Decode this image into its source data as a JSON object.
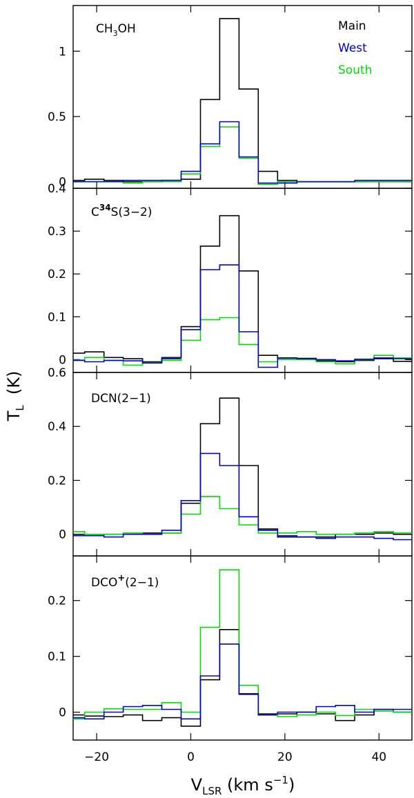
{
  "chart_data": {
    "type": "step-line",
    "title": "",
    "xlabel": {
      "main": "V",
      "sub": "LSR",
      "unit_pre": "(km  s",
      "unit_sup": "−1",
      "unit_post": ")"
    },
    "ylabel": {
      "main": "T",
      "sub": "L",
      "unit": "(K)"
    },
    "xlim": [
      -25,
      47
    ],
    "x_ticks": [
      -20,
      0,
      20,
      40
    ],
    "x_tick_labels": [
      "−20",
      "0",
      "20",
      "40"
    ],
    "bin_width": 4.1,
    "x": [
      -24.6,
      -20.5,
      -16.4,
      -12.3,
      -8.2,
      -4.1,
      0.0,
      4.1,
      8.2,
      12.3,
      16.4,
      20.5,
      24.6,
      28.7,
      32.8,
      36.9,
      41.0,
      45.1
    ],
    "legend": [
      {
        "name": "Main",
        "color": "#000000"
      },
      {
        "name": "West",
        "color": "#0000cc"
      },
      {
        "name": "South",
        "color": "#00dd00"
      }
    ],
    "panels": [
      {
        "id": "ch3oh",
        "label_parts": {
          "base": "CH",
          "sub": "3",
          "post": "OH"
        },
        "ylim": [
          -0.05,
          1.35
        ],
        "y_ticks": [
          0,
          0.5,
          1
        ],
        "y_tick_labels": [
          "0",
          "0.5",
          "1"
        ],
        "series": [
          {
            "name": "Main",
            "color": "#000000",
            "values": [
              0.01,
              0.02,
              0.01,
              0.0,
              0.0,
              0.01,
              0.02,
              0.63,
              1.25,
              0.71,
              0.08,
              0.01,
              0.0,
              0.0,
              0.0,
              0.0,
              0.0,
              0.0
            ]
          },
          {
            "name": "West",
            "color": "#0000cc",
            "values": [
              0.0,
              0.0,
              0.0,
              0.01,
              0.01,
              0.01,
              0.08,
              0.29,
              0.46,
              0.19,
              -0.01,
              -0.01,
              0.0,
              0.0,
              0.0,
              0.01,
              0.01,
              0.01
            ]
          },
          {
            "name": "South",
            "color": "#00dd00",
            "values": [
              0.0,
              0.0,
              0.0,
              -0.01,
              0.0,
              0.0,
              0.06,
              0.27,
              0.42,
              0.18,
              -0.02,
              0.0,
              0.0,
              0.0,
              0.0,
              0.0,
              0.0,
              0.0
            ]
          }
        ]
      },
      {
        "id": "c34s",
        "label_parts": {
          "base": "C",
          "sup": "34",
          "post": "S(3−2)"
        },
        "ylim": [
          -0.03,
          0.4
        ],
        "y_ticks": [
          0,
          0.1,
          0.2,
          0.3,
          0.4
        ],
        "y_tick_labels": [
          "0",
          "0.1",
          "0.2",
          "0.3",
          "0.4"
        ],
        "series": [
          {
            "name": "Main",
            "color": "#000000",
            "values": [
              0.015,
              0.018,
              0.005,
              0.002,
              -0.005,
              0.002,
              0.077,
              0.265,
              0.336,
              0.207,
              0.01,
              0.004,
              0.003,
              -0.003,
              -0.005,
              -0.002,
              0.002,
              -0.004
            ]
          },
          {
            "name": "West",
            "color": "#0000cc",
            "values": [
              -0.002,
              -0.005,
              -0.002,
              -0.003,
              -0.008,
              0.005,
              0.07,
              0.21,
              0.221,
              0.065,
              -0.018,
              0.003,
              0.002,
              0.0,
              -0.003,
              0.001,
              0.004,
              0.002
            ]
          },
          {
            "name": "South",
            "color": "#00dd00",
            "values": [
              -0.001,
              0.005,
              -0.002,
              -0.013,
              -0.007,
              -0.002,
              0.045,
              0.093,
              0.098,
              0.035,
              -0.005,
              0.0,
              0.0,
              -0.005,
              -0.01,
              0.0,
              0.01,
              0.004
            ]
          }
        ]
      },
      {
        "id": "dcn",
        "label_parts": {
          "base": "DCN(2−1)"
        },
        "ylim": [
          -0.08,
          0.6
        ],
        "y_ticks": [
          0,
          0.2,
          0.4,
          0.6
        ],
        "y_tick_labels": [
          "0",
          "0.2",
          "0.4",
          "0.6"
        ],
        "series": [
          {
            "name": "Main",
            "color": "#000000",
            "values": [
              0.0,
              -0.005,
              0.0,
              0.0,
              0.005,
              0.005,
              0.115,
              0.41,
              0.505,
              0.255,
              0.02,
              -0.01,
              -0.01,
              -0.01,
              0.0,
              0.0,
              0.005,
              0.0
            ]
          },
          {
            "name": "West",
            "color": "#0000cc",
            "values": [
              -0.005,
              -0.005,
              -0.01,
              0.0,
              0.0,
              0.015,
              0.125,
              0.3,
              0.255,
              0.065,
              0.015,
              -0.005,
              -0.01,
              -0.015,
              -0.01,
              -0.01,
              -0.015,
              -0.02
            ]
          },
          {
            "name": "South",
            "color": "#00dd00",
            "values": [
              0.01,
              0.0,
              0.0,
              0.005,
              0.0,
              0.005,
              0.075,
              0.14,
              0.095,
              0.035,
              0.005,
              0.005,
              0.01,
              0.0,
              0.0,
              0.005,
              0.01,
              0.005
            ]
          }
        ]
      },
      {
        "id": "dco",
        "label_parts": {
          "base": "DCO",
          "sup": "+",
          "post": "(2−1)"
        },
        "ylim": [
          -0.05,
          0.28
        ],
        "y_ticks": [
          0,
          0.1,
          0.2
        ],
        "y_tick_labels": [
          "0",
          "0.1",
          "0.2"
        ],
        "series": [
          {
            "name": "Main",
            "color": "#000000",
            "values": [
              -0.005,
              -0.007,
              -0.008,
              -0.005,
              -0.015,
              -0.01,
              -0.025,
              0.058,
              0.148,
              0.032,
              -0.005,
              -0.003,
              0.0,
              -0.003,
              -0.015,
              -0.005,
              0.005,
              0.0
            ]
          },
          {
            "name": "West",
            "color": "#0000cc",
            "values": [
              -0.01,
              -0.012,
              0.0,
              0.01,
              0.012,
              0.005,
              -0.012,
              0.065,
              0.122,
              0.033,
              -0.003,
              0.0,
              0.0,
              0.01,
              0.012,
              0.0,
              0.005,
              0.005
            ]
          },
          {
            "name": "South",
            "color": "#00dd00",
            "values": [
              -0.012,
              0.0,
              0.006,
              0.005,
              0.005,
              0.017,
              0.0,
              0.152,
              0.255,
              0.048,
              -0.003,
              -0.008,
              -0.005,
              0.0,
              -0.006,
              0.005,
              0.002,
              0.0
            ]
          }
        ]
      }
    ]
  }
}
